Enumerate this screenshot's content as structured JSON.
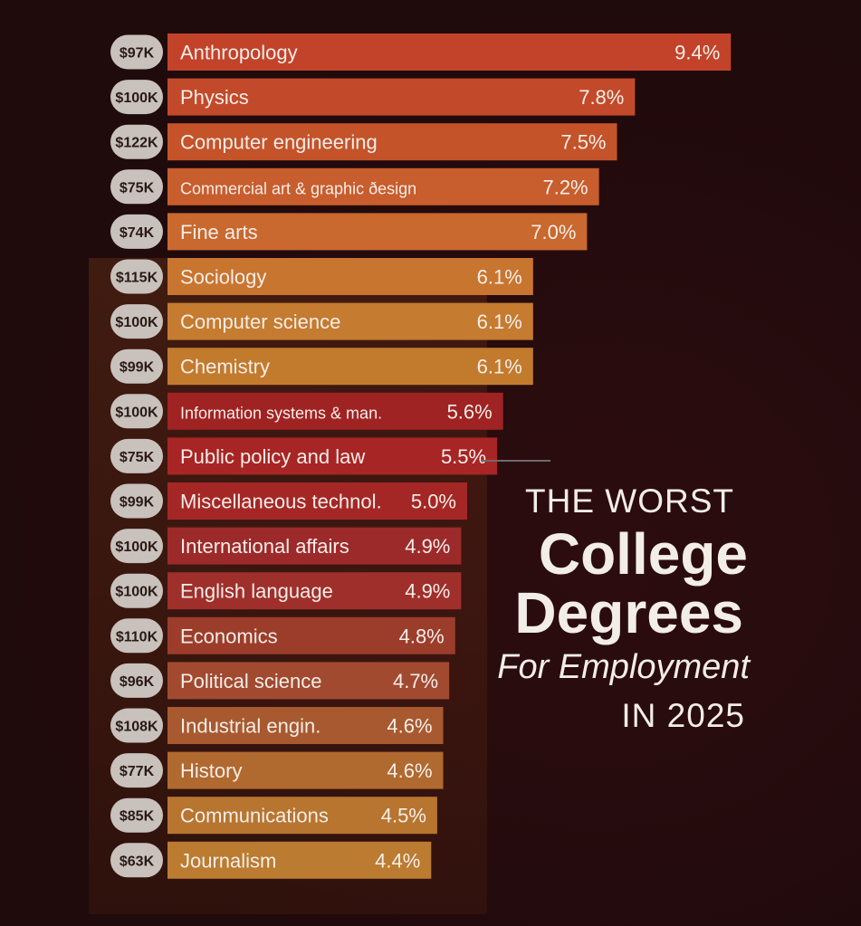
{
  "chart_data": {
    "type": "bar",
    "orientation": "horizontal",
    "title_lines": [
      "THE WORST",
      "College",
      "Degrees",
      "For Employment",
      "IN 2025"
    ],
    "categories": [
      "Anthropology",
      "Physics",
      "Computer engineering",
      "Commercial art & graphic ðesign",
      "Fine arts",
      "Sociology",
      "Computer science",
      "Chemistry",
      "Information systems & man.",
      "Public policy and law",
      "Miscellaneous technol.",
      "International affairs",
      "English language",
      "Economics",
      "Political science",
      "Industrial engin.",
      "History",
      "Communications",
      "Journalism"
    ],
    "values": [
      9.4,
      7.8,
      7.5,
      7.2,
      7.0,
      6.1,
      6.1,
      6.1,
      5.6,
      5.5,
      5.0,
      4.9,
      4.9,
      4.8,
      4.7,
      4.6,
      4.6,
      4.5,
      4.4
    ],
    "value_labels": [
      "9.4%",
      "7.8%",
      "7.5%",
      "7.2%",
      "7.0%",
      "6.1%",
      "6.1%",
      "6.1%",
      "5.6%",
      "5.5%",
      "5.0%",
      "4.9%",
      "4.9%",
      "4.8%",
      "4.7%",
      "4.6%",
      "4.6%",
      "4.5%",
      "4.4%"
    ],
    "salary_labels": [
      "$97K",
      "$100K",
      "$122K",
      "$75K",
      "$74K",
      "$115K",
      "$100K",
      "$99K",
      "$100K",
      "$75K",
      "$99K",
      "$100K",
      "$100K",
      "$110K",
      "$96K",
      "$108K",
      "$77K",
      "$85K",
      "$63K"
    ],
    "bar_colors": [
      "#c2432a",
      "#c24a2a",
      "#c4532a",
      "#c85d2d",
      "#c9682f",
      "#c87530",
      "#c57b30",
      "#c27a2d",
      "#9f2322",
      "#a82525",
      "#a42726",
      "#9c2a2a",
      "#9f2f2b",
      "#9c3d2c",
      "#a14a30",
      "#a8592f",
      "#b0692f",
      "#b77530",
      "#bb7b30"
    ],
    "colors": {
      "background": "#1f0a0c",
      "salary_badge": "#c9c1bb",
      "text": "#f3ede8"
    }
  }
}
